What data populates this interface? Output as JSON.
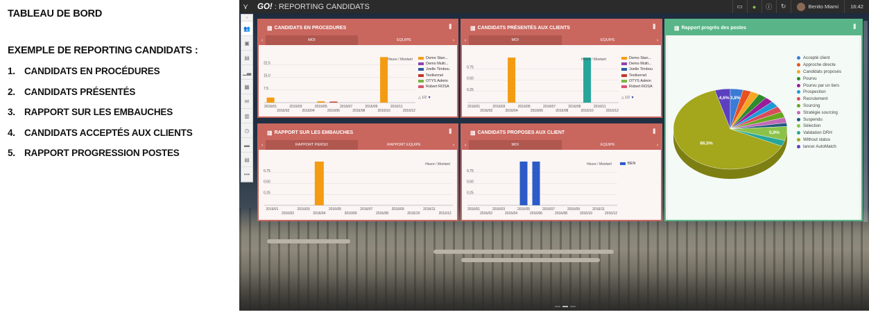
{
  "left": {
    "title": "TABLEAU DE BORD",
    "subtitle": "EXEMPLE DE REPORTING CANDIDATS :",
    "items": [
      {
        "n": "1.",
        "label": "CANDIDATS EN PROCÉDURES"
      },
      {
        "n": "2.",
        "label": "CANDIDATS PRÉSENTÉS"
      },
      {
        "n": "3.",
        "label": "RAPPORT SUR LES EMBAUCHES"
      },
      {
        "n": "4.",
        "label": "CANDIDATS ACCEPTÉS AUX CLIENTS"
      },
      {
        "n": "5.",
        "label": "RAPPORT PROGRESSION POSTES"
      }
    ]
  },
  "topbar": {
    "logo": "GO!",
    "title": ": REPORTING CANDIDATS",
    "user": "Benito Miami",
    "time": "16:42"
  },
  "sidebar_icons": [
    "users-icon",
    "briefcase-icon",
    "contact-icon",
    "chart-icon",
    "building-icon",
    "mail-icon",
    "calendar-icon",
    "clock-icon",
    "card-icon",
    "report-icon",
    "more-icon"
  ],
  "panels": {
    "p1": {
      "title": "CANDIDATS EN PROCEDURES",
      "tabs": [
        "MOI",
        "EQUIPE"
      ],
      "unit": "Heure / Montant",
      "pager": "1/2"
    },
    "p2": {
      "title": "CANDIDATS PRÉSENTÉS AUX CLIENTS",
      "tabs": [
        "MOI",
        "EQUIPE"
      ],
      "unit": "Heure / Montant",
      "pager": "1/2"
    },
    "p3": {
      "title": "RAPPORT SUR LES EMBAUCHES",
      "tabs": [
        "RAPPORT PERSO",
        "RAPPORT EQUIPE"
      ],
      "unit": "Heure / Montant"
    },
    "p4": {
      "title": "CANDIDATS PROPOSES AUX CLIENT",
      "tabs": [
        "MOI",
        "EQUIPE"
      ],
      "unit": "Heure / Montant"
    },
    "p5": {
      "title": "Rapport progrès des postes"
    }
  },
  "chart_data": [
    {
      "type": "bar",
      "title": "CANDIDATS EN PROCEDURES",
      "categories": [
        "2016/01",
        "2016/02",
        "2016/03",
        "2016/04",
        "2016/05",
        "2016/06",
        "2016/07",
        "2016/08",
        "2016/09",
        "2016/10",
        "2016/11",
        "2016/12"
      ],
      "yticks": [
        "7.5",
        "15.0",
        "22.5"
      ],
      "ylim": [
        0,
        30
      ],
      "series": [
        {
          "name": "Demo Stan...",
          "color": "#f39c12",
          "values": [
            3,
            0,
            0,
            0,
            0.8,
            0.6,
            0,
            0,
            0,
            27,
            0,
            0
          ]
        },
        {
          "name": "Demo Multi...",
          "color": "#8e44ad",
          "values": [
            0,
            0,
            0,
            0,
            0,
            0,
            0,
            0,
            0,
            0,
            0,
            0
          ]
        },
        {
          "name": "Joelle Timbou",
          "color": "#2c5aa0",
          "values": [
            0,
            0,
            0,
            0,
            0,
            0,
            0,
            0,
            0,
            0,
            0,
            0
          ]
        },
        {
          "name": "Textkernel",
          "color": "#c0392b",
          "values": [
            0,
            0,
            0,
            0,
            0,
            0.6,
            0,
            0,
            0,
            0,
            0,
            0
          ]
        },
        {
          "name": "OTYS Admin",
          "color": "#7cb342",
          "values": [
            0,
            0,
            0,
            0,
            0,
            0,
            0,
            0,
            0,
            0,
            0,
            0
          ]
        },
        {
          "name": "Robert ROSA",
          "color": "#d9536f",
          "values": [
            0,
            0,
            0,
            0,
            0,
            0,
            0,
            0,
            0,
            0,
            0,
            0
          ]
        }
      ]
    },
    {
      "type": "bar",
      "title": "CANDIDATS PRÉSENTÉS AUX CLIENTS",
      "categories": [
        "2016/01",
        "2016/02",
        "2016/03",
        "2016/04",
        "2016/05",
        "2016/06",
        "2016/07",
        "2016/08",
        "2016/09",
        "2016/10",
        "2016/11",
        "2016/12"
      ],
      "yticks": [
        "0.25",
        "0.50",
        "0.75"
      ],
      "ylim": [
        0,
        1
      ],
      "series": [
        {
          "name": "Demo Stan...",
          "color": "#f39c12",
          "values": [
            0,
            0,
            0,
            1,
            0,
            0,
            0,
            0,
            0,
            0,
            0,
            0
          ]
        },
        {
          "name": "Demo Multi...",
          "color": "#8e44ad",
          "values": [
            0,
            0,
            0,
            0,
            0,
            0,
            0,
            0,
            0,
            0,
            0,
            0
          ]
        },
        {
          "name": "Joelle Timbou",
          "color": "#2c5aa0",
          "values": [
            0,
            0,
            0,
            0,
            0,
            0,
            0,
            0,
            0,
            0,
            0,
            0
          ]
        },
        {
          "name": "Textkernel",
          "color": "#c0392b",
          "values": [
            0,
            0,
            0,
            0,
            0,
            0,
            0,
            0,
            0,
            0,
            0,
            0
          ]
        },
        {
          "name": "OTYS Admin",
          "color": "#7cb342",
          "values": [
            0,
            0,
            0,
            0,
            0,
            0,
            0,
            0,
            0,
            0,
            0,
            0
          ]
        },
        {
          "name": "Robert ROSA",
          "color": "#d9536f",
          "values": [
            0,
            0,
            0,
            0,
            0,
            0,
            0,
            0,
            0,
            0,
            0,
            0
          ]
        },
        {
          "name": "",
          "color": "#26a69a",
          "values": [
            0,
            0,
            0,
            0,
            0,
            0,
            0,
            0,
            0,
            1,
            0,
            0
          ]
        }
      ]
    },
    {
      "type": "bar",
      "title": "RAPPORT SUR LES EMBAUCHES",
      "categories": [
        "2016/01",
        "2016/02",
        "2016/03",
        "2016/04",
        "2016/05",
        "2016/06",
        "2016/07",
        "2016/08",
        "2016/09",
        "2016/10",
        "2016/11",
        "2016/12"
      ],
      "yticks": [
        "0.25",
        "0.50",
        "0.75"
      ],
      "ylim": [
        0,
        1
      ],
      "series": [
        {
          "name": "",
          "color": "#f39c12",
          "values": [
            0,
            0,
            0,
            1,
            0,
            0,
            0,
            0,
            0,
            0,
            0,
            0
          ]
        }
      ]
    },
    {
      "type": "bar",
      "title": "CANDIDATS PROPOSES AUX CLIENT",
      "categories": [
        "2016/01",
        "2016/02",
        "2016/03",
        "2016/04",
        "2016/05",
        "2016/06",
        "2016/07",
        "2016/08",
        "2016/09",
        "2016/10",
        "2016/11",
        "2016/12"
      ],
      "yticks": [
        "0.25",
        "0.50",
        "0.75"
      ],
      "ylim": [
        0,
        1
      ],
      "series": [
        {
          "name": "BEN",
          "color": "#2c5ac8",
          "values": [
            0,
            0,
            0,
            0,
            1,
            1,
            0,
            0,
            0,
            0,
            0,
            0
          ]
        }
      ]
    },
    {
      "type": "pie",
      "title": "Rapport progrès des postes",
      "slices": [
        {
          "label": "Accepté client",
          "value": 3.8,
          "color": "#3a7bd5",
          "show": "3,8%"
        },
        {
          "label": "Approche directe",
          "value": 2.5,
          "color": "#e8501e"
        },
        {
          "label": "Candidats proposés",
          "value": 2.5,
          "color": "#f5a623"
        },
        {
          "label": "Pourvu",
          "value": 2.5,
          "color": "#2e8b2e"
        },
        {
          "label": "Pourvu par un tiers",
          "value": 2.5,
          "color": "#9b1c9b"
        },
        {
          "label": "Prospection",
          "value": 2.5,
          "color": "#1e9ad6"
        },
        {
          "label": "Recrutement",
          "value": 2.5,
          "color": "#d94c5a"
        },
        {
          "label": "Sourcing",
          "value": 2.5,
          "color": "#66a61e"
        },
        {
          "label": "Stratégie sourcing",
          "value": 2.3,
          "color": "#c26ab5"
        },
        {
          "label": "Suspendu",
          "value": 1.5,
          "color": "#1f5a7a"
        },
        {
          "label": "Sélection",
          "value": 5.9,
          "color": "#8bc34a",
          "show": "5,9%"
        },
        {
          "label": "Validation DRH",
          "value": 2.5,
          "color": "#26a69a"
        },
        {
          "label": "Without status",
          "value": 66.5,
          "color": "#a4a61c",
          "show": "66,5%"
        },
        {
          "label": "lancer AutoMatch",
          "value": 4.6,
          "color": "#5b3fbf",
          "show": "4,6%"
        }
      ]
    }
  ]
}
